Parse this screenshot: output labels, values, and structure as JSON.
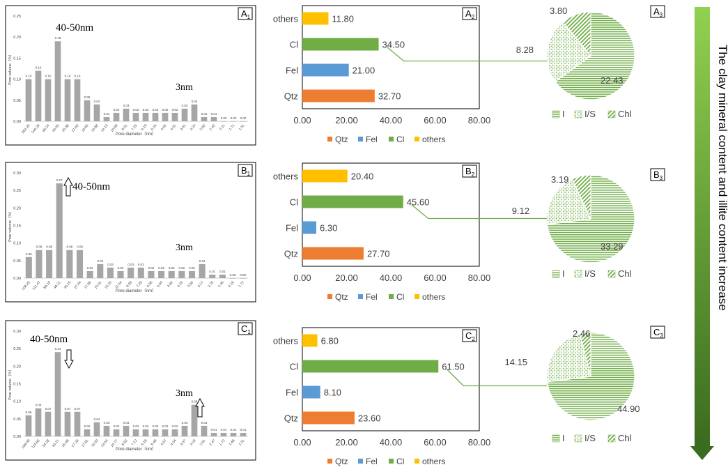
{
  "figure": {
    "side_label": "The clay mineral content and illite content increase"
  },
  "colors": {
    "Qtz": "#ed7d31",
    "Fel": "#5b9bd5",
    "Cl": "#70ad47",
    "others": "#ffc000",
    "hist_bar": "#a6a6a6",
    "pie_line": "#70ad47",
    "arrow_top": "#92d050",
    "arrow_bottom": "#3a6b1e"
  },
  "chart_data": [
    {
      "id": "A1",
      "panel": "A",
      "sub": "1",
      "type": "bar",
      "annotation_main": "40-50nm",
      "annotation_small": "3nm",
      "xlabel": "Pore diameter（nm）",
      "ylabel": "Pore volume（%）",
      "ylim": [
        0,
        0.25
      ],
      "yticks": [
        "0.00",
        "0.05",
        "0.10",
        "0.15",
        "0.20",
        "0.25"
      ],
      "categories": [
        "352.26",
        "144.29",
        "65.24",
        "40.05",
        "25.38",
        "21.60",
        "16.80",
        "13.88",
        "12.13",
        "10.89",
        "9.01",
        "7.25",
        "6.19",
        "5.34",
        "4.66",
        "4.01",
        "3.61",
        "3.24",
        "2.83",
        "2.43",
        "2.11",
        "1.71",
        "1.31"
      ],
      "values": [
        0.1,
        0.12,
        0.1,
        0.19,
        0.1,
        0.1,
        0.05,
        0.04,
        0.01,
        0.02,
        0.03,
        0.02,
        0.02,
        0.02,
        0.02,
        0.02,
        0.03,
        0.04,
        0.01,
        0.01,
        0.0,
        0.0,
        0.0
      ],
      "value_labels": [
        "0.10",
        "0.12",
        "0.10",
        "0.19",
        "0.10",
        "0.10",
        "0.05",
        "0.04",
        "0.01",
        "0.02",
        "0.03",
        "0.02",
        "0.02",
        "0.02",
        "0.02",
        "0.02",
        "0.03",
        "0.04",
        "0.01",
        "0.01",
        "0.00",
        "0.00",
        "0.00"
      ]
    },
    {
      "id": "B1",
      "panel": "B",
      "sub": "1",
      "type": "bar",
      "annotation_main": "40-50nm",
      "annotation_small": "3nm",
      "xlabel": "Pore diameter（nm）",
      "ylabel": "Pore volume（%）",
      "ylim": [
        0,
        0.3
      ],
      "yticks": [
        "0.00",
        "0.05",
        "0.10",
        "0.15",
        "0.20",
        "0.25",
        "0.30"
      ],
      "categories": [
        "108.25",
        "111.47",
        "89.18",
        "49.21",
        "35.15",
        "27.34",
        "17.96",
        "15.01",
        "13.20",
        "11.54",
        "8.59",
        "7.20",
        "6.58",
        "5.64",
        "4.82",
        "4.25",
        "3.58",
        "3.17",
        "2.76",
        "2.46",
        "2.16",
        "1.77"
      ],
      "values": [
        0.06,
        0.08,
        0.08,
        0.27,
        0.08,
        0.08,
        0.02,
        0.04,
        0.03,
        0.02,
        0.03,
        0.03,
        0.02,
        0.02,
        0.02,
        0.02,
        0.02,
        0.04,
        0.01,
        0.01,
        0.0,
        0.0
      ],
      "value_labels": [
        "0.06",
        "0.08",
        "0.08",
        "0.27",
        "0.08",
        "0.08",
        "0.02",
        "0.04",
        "0.03",
        "0.02",
        "0.03",
        "0.03",
        "0.02",
        "0.02",
        "0.02",
        "0.02",
        "0.02",
        "0.04",
        "0.01",
        "0.01",
        "0.00",
        "0.00"
      ]
    },
    {
      "id": "C1",
      "panel": "C",
      "sub": "1",
      "type": "bar",
      "annotation_main": "40-50nm",
      "annotation_small": "3nm",
      "xlabel": "Pore diameter（nm）",
      "ylabel": "Pore volume（%）",
      "ylim": [
        0,
        0.3
      ],
      "yticks": [
        "0.00",
        "0.05",
        "0.10",
        "0.15",
        "0.20",
        "0.25",
        "0.30"
      ],
      "categories": [
        "108.69",
        "114.83",
        "54.28",
        "40.21",
        "25.48",
        "27.28",
        "17.81",
        "15.00",
        "13.64",
        "10.77",
        "8.92",
        "7.12",
        "6.18",
        "5.49",
        "4.67",
        "4.04",
        "3.57",
        "3.19",
        "2.81",
        "2.47",
        "1.72",
        "1.48",
        "1.31"
      ],
      "values": [
        0.06,
        0.08,
        0.07,
        0.24,
        0.07,
        0.07,
        0.02,
        0.04,
        0.03,
        0.02,
        0.03,
        0.02,
        0.02,
        0.02,
        0.02,
        0.02,
        0.03,
        0.09,
        0.03,
        0.01,
        0.01,
        0.01,
        0.01
      ],
      "value_labels": [
        "0.06",
        "0.08",
        "0.07",
        "0.24",
        "0.07",
        "0.07",
        "0.02",
        "0.04",
        "0.03",
        "0.02",
        "0.03",
        "0.02",
        "0.02",
        "0.02",
        "0.02",
        "0.02",
        "0.03",
        "0.09",
        "0.03",
        "0.01",
        "0.01",
        "0.01",
        "0.01"
      ]
    },
    {
      "id": "A2",
      "panel": "A",
      "sub": "2",
      "type": "bar",
      "orientation": "horizontal",
      "categories": [
        "others",
        "Cl",
        "Fel",
        "Qtz"
      ],
      "values": [
        11.8,
        34.5,
        21.0,
        32.7
      ],
      "value_labels": [
        "11.80",
        "34.50",
        "21.00",
        "32.70"
      ],
      "xlim": [
        0,
        80
      ],
      "xticks": [
        "0.00",
        "20.00",
        "40.00",
        "60.00",
        "80.00"
      ],
      "legend": [
        "Qtz",
        "Fel",
        "Cl",
        "others"
      ],
      "legend_position": "bottom"
    },
    {
      "id": "B2",
      "panel": "B",
      "sub": "2",
      "type": "bar",
      "orientation": "horizontal",
      "categories": [
        "others",
        "Cl",
        "Fel",
        "Qtz"
      ],
      "values": [
        20.4,
        45.6,
        6.3,
        27.7
      ],
      "value_labels": [
        "20.40",
        "45.60",
        "6.30",
        "27.70"
      ],
      "xlim": [
        0,
        80
      ],
      "xticks": [
        "0.00",
        "20.00",
        "40.00",
        "60.00",
        "80.00"
      ],
      "legend": [
        "Qtz",
        "Fel",
        "Cl",
        "others"
      ],
      "legend_position": "bottom"
    },
    {
      "id": "C2",
      "panel": "C",
      "sub": "2",
      "type": "bar",
      "orientation": "horizontal",
      "categories": [
        "others",
        "Cl",
        "Fel",
        "Qtz"
      ],
      "values": [
        6.8,
        61.5,
        8.1,
        23.6
      ],
      "value_labels": [
        "6.80",
        "61.50",
        "8.10",
        "23.60"
      ],
      "xlim": [
        0,
        80
      ],
      "xticks": [
        "0.00",
        "20.00",
        "40.00",
        "60.00",
        "80.00"
      ],
      "legend": [
        "Qtz",
        "Fel",
        "Cl",
        "others"
      ],
      "legend_position": "bottom"
    },
    {
      "id": "A3",
      "panel": "A",
      "sub": "3",
      "type": "pie",
      "labels": [
        "I",
        "I/S",
        "Chl"
      ],
      "values": [
        22.43,
        8.28,
        3.8
      ],
      "value_labels": [
        "22.43",
        "8.28",
        "3.80"
      ],
      "legend": [
        "I",
        "I/S",
        "Chl"
      ],
      "legend_position": "bottom"
    },
    {
      "id": "B3",
      "panel": "B",
      "sub": "3",
      "type": "pie",
      "labels": [
        "I",
        "I/S",
        "Chl"
      ],
      "values": [
        33.29,
        9.12,
        3.19
      ],
      "value_labels": [
        "33.29",
        "9.12",
        "3.19"
      ],
      "legend": [
        "I",
        "I/S",
        "Chl"
      ],
      "legend_position": "bottom"
    },
    {
      "id": "C3",
      "panel": "C",
      "sub": "3",
      "type": "pie",
      "labels": [
        "I",
        "I/S",
        "Chl"
      ],
      "values": [
        44.9,
        14.15,
        2.46
      ],
      "value_labels": [
        "44.90",
        "14.15",
        "2.46"
      ],
      "legend": [
        "I",
        "I/S",
        "Chl"
      ],
      "legend_position": "bottom"
    }
  ]
}
